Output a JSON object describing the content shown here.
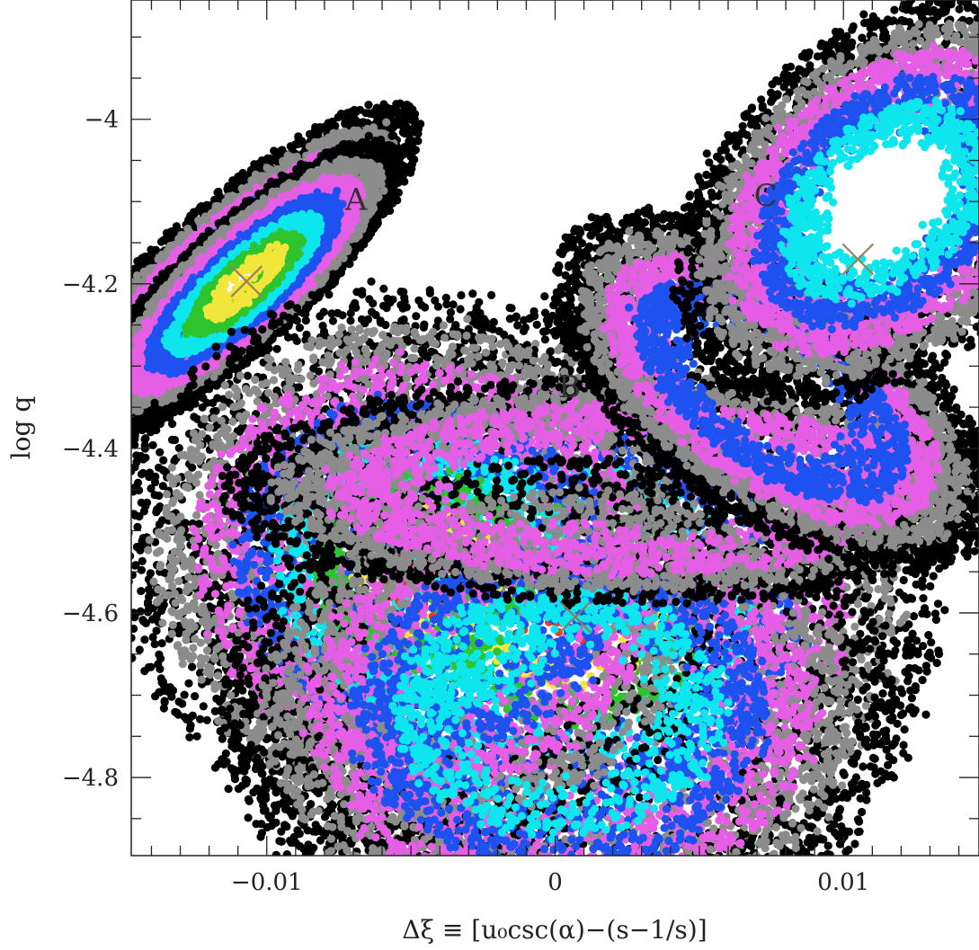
{
  "chart_data": {
    "type": "scatter",
    "xlabel": "Δξ ≡ [u₀csc(α)−(s−1/s)]",
    "ylabel": "log q",
    "xlim": [
      -0.0147,
      0.0147
    ],
    "ylim": [
      -4.895,
      -3.855
    ],
    "x_ticks": [
      {
        "value": -0.01,
        "label": "−0.01"
      },
      {
        "value": 0,
        "label": "0"
      },
      {
        "value": 0.01,
        "label": "0.01"
      }
    ],
    "y_ticks": [
      {
        "value": -4.0,
        "label": "−4"
      },
      {
        "value": -4.2,
        "label": "−4.2"
      },
      {
        "value": -4.4,
        "label": "−4.4"
      },
      {
        "value": -4.6,
        "label": "−4.6"
      },
      {
        "value": -4.8,
        "label": "−4.8"
      }
    ],
    "x_minor_step": 0.001,
    "y_minor_step": 0.05,
    "grid": false,
    "legend": "none",
    "levels": [
      {
        "color": "#000000"
      },
      {
        "color": "#8c8c8c"
      },
      {
        "color": "#e65ee6"
      },
      {
        "color": "#1e52f0"
      },
      {
        "color": "#0ee6ee"
      },
      {
        "color": "#2ec42e"
      },
      {
        "color": "#f2e63a"
      },
      {
        "color": "#f23a22"
      }
    ],
    "regions": [
      {
        "label": "A",
        "x": -0.0069,
        "y": -4.11
      },
      {
        "label": "B",
        "x": 0.0005,
        "y": -4.338
      },
      {
        "label": "C",
        "x": 0.0073,
        "y": -4.105
      }
    ],
    "best_fit_markers": [
      {
        "x": -0.0107,
        "y": -4.197,
        "color": "#a0805a"
      },
      {
        "x": 0.0007,
        "y": -4.605,
        "color": "#8a7a60"
      },
      {
        "x": 0.0105,
        "y": -4.17,
        "color": "#a0805a"
      }
    ],
    "point_clouds": [
      {
        "id": "A",
        "x0": -0.0115,
        "y0": -4.2,
        "vx": 0.00083,
        "vy": 0.1,
        "angle_deg": -48,
        "n_outer": 1,
        "levels": [
          0,
          1,
          2,
          3,
          4,
          5,
          6
        ]
      },
      {
        "id": "A-core",
        "x0": -0.0108,
        "y0": -4.2,
        "vx": 0.0007,
        "vy": 0.08,
        "angle_deg": -48,
        "levels": [
          0,
          1,
          2,
          3,
          4,
          5,
          6
        ]
      },
      {
        "id": "B-east",
        "x0": 0.0005,
        "y0": -4.6,
        "vx": 0.0042,
        "vy": 0.12,
        "angle_deg": 0,
        "levels": [
          0,
          1,
          2,
          3,
          4,
          5,
          6,
          7
        ]
      },
      {
        "id": "B-west",
        "x0": -0.0045,
        "y0": -4.55,
        "vx": 0.0035,
        "vy": 0.11,
        "angle_deg": -20,
        "levels": [
          0,
          1,
          2,
          3,
          4,
          5,
          6,
          7
        ]
      },
      {
        "id": "B-south",
        "x0": 0.0002,
        "y0": -4.72,
        "vx": 0.0038,
        "vy": 0.1,
        "angle_deg": 0,
        "levels": [
          0,
          1,
          2,
          3,
          4
        ]
      },
      {
        "id": "B-ridge",
        "x0": 0.0025,
        "y0": -4.45,
        "vx": 0.0045,
        "vy": 0.045,
        "angle_deg": 0,
        "levels": [
          0,
          1,
          2
        ]
      },
      {
        "id": "C-stem",
        "x0": 0.0075,
        "y0": -4.33,
        "vx": 0.0014,
        "vy": 0.1,
        "angle_deg": 55,
        "levels": [
          0,
          1,
          2,
          3
        ]
      },
      {
        "id": "C",
        "x0": 0.0115,
        "y0": -4.1,
        "vx": 0.0027,
        "vy": 0.065,
        "angle_deg": 42,
        "levels": [
          0,
          1,
          2,
          3,
          4
        ]
      }
    ]
  }
}
